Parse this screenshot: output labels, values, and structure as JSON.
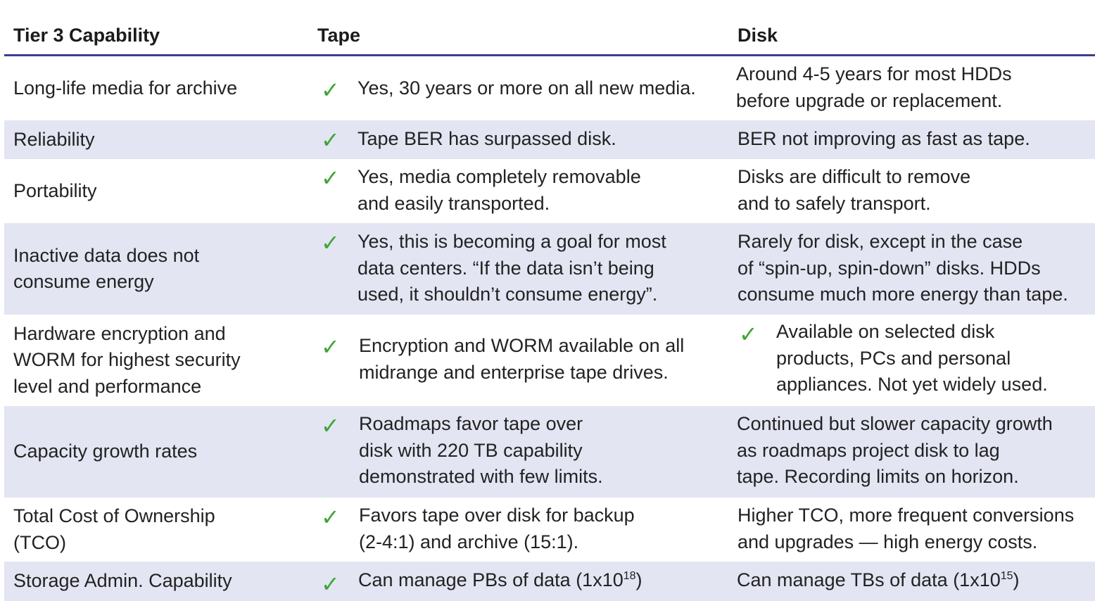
{
  "headers": {
    "capability": "Tier 3 Capability",
    "tape": "Tape",
    "disk": "Disk"
  },
  "colors": {
    "header_rule": "#3a3f8f",
    "row_shade": "#e3e5f3",
    "check": "#3fa535"
  },
  "check_glyph": "✓",
  "rows": [
    {
      "capability": "Long-life media for archive",
      "tape": "Yes, 30 years or more on all new media.",
      "disk": "Around 4-5 years for most HDDs\nbefore upgrade or replacement."
    },
    {
      "capability": "Reliability",
      "tape": "Tape BER has surpassed disk.",
      "disk": "BER not improving as fast as tape."
    },
    {
      "capability": "Portability",
      "tape": "Yes, media completely removable\nand easily transported.",
      "disk": "Disks are difficult to remove\nand to safely transport."
    },
    {
      "capability": "Inactive data does not\nconsume energy",
      "tape": "Yes, this is becoming a goal for most\ndata centers. “If the data isn’t being\nused, it shouldn’t consume energy”.",
      "disk": "Rarely for disk, except in the case\nof “spin-up, spin-down” disks. HDDs\nconsume much more energy than tape."
    },
    {
      "capability": "Hardware encryption and\nWORM for highest security\nlevel and performance",
      "tape": "Encryption and WORM available on all\nmidrange and enterprise tape drives.",
      "disk": "Available on selected disk\nproducts, PCs and personal\nappliances. Not yet widely used."
    },
    {
      "capability": "Capacity growth rates",
      "tape": "Roadmaps favor tape over\ndisk with 220 TB capability\ndemonstrated with few limits.",
      "disk": "Continued but slower capacity growth\nas roadmaps project disk to lag\ntape. Recording limits on horizon."
    },
    {
      "capability": "Total Cost of Ownership\n(TCO)",
      "tape": "Favors tape over disk for backup\n(2-4:1) and archive (15:1).",
      "disk": "Higher TCO, more frequent conversions\nand upgrades — high energy costs."
    },
    {
      "capability": "Storage Admin. Capability",
      "tape": "Can manage PBs of data (1x10",
      "tape_sup": "18",
      "tape_end": ")",
      "disk": "Can manage TBs of data (1x10",
      "disk_sup": "15",
      "disk_end": ")"
    }
  ]
}
